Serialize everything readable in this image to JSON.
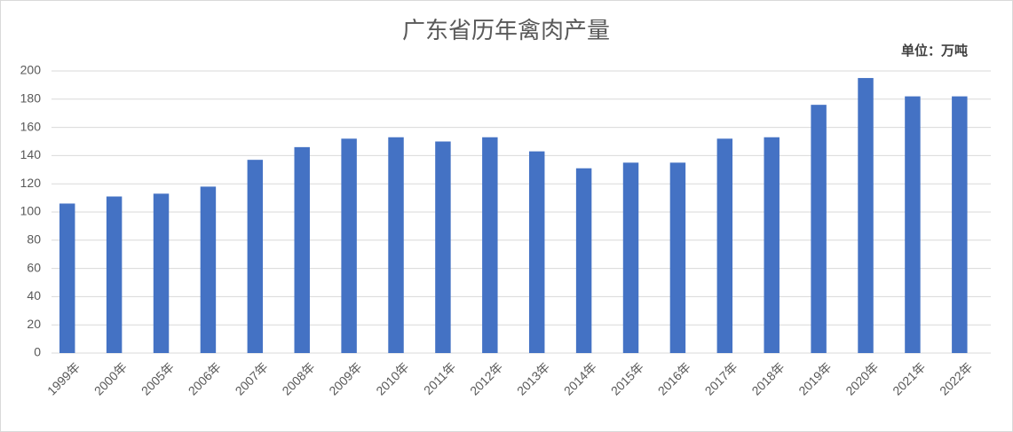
{
  "chart_data": {
    "type": "bar",
    "title": "广东省历年禽肉产量",
    "annotation": "单位：万吨",
    "categories": [
      "1999年",
      "2000年",
      "2005年",
      "2006年",
      "2007年",
      "2008年",
      "2009年",
      "2010年",
      "2011年",
      "2012年",
      "2013年",
      "2014年",
      "2015年",
      "2016年",
      "2017年",
      "2018年",
      "2019年",
      "2020年",
      "2021年",
      "2022年"
    ],
    "values": [
      106,
      111,
      113,
      118,
      137,
      146,
      152,
      153,
      150,
      153,
      143,
      131,
      135,
      135,
      152,
      153,
      176,
      195,
      182,
      182
    ],
    "color": "#4472c4",
    "ylim": [
      0,
      200
    ],
    "yticks": [
      0,
      20,
      40,
      60,
      80,
      100,
      120,
      140,
      160,
      180,
      200
    ],
    "grid": true
  }
}
